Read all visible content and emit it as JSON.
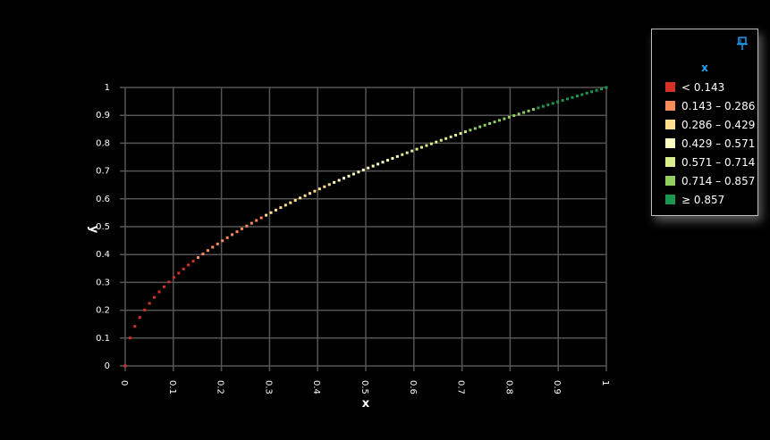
{
  "chart_data": {
    "type": "scatter",
    "xlabel": "x",
    "ylabel": "y",
    "xlim": [
      0,
      1
    ],
    "ylim": [
      0,
      1
    ],
    "x_ticks": [
      "0",
      "0.1",
      "0.2",
      "0.3",
      "0.4",
      "0.5",
      "0.6",
      "0.7",
      "0.8",
      "0.9",
      "1"
    ],
    "y_ticks": [
      "0",
      "0.1",
      "0.2",
      "0.3",
      "0.4",
      "0.5",
      "0.6",
      "0.7",
      "0.8",
      "0.9",
      "1"
    ],
    "grid": true,
    "relationship": "y = sqrt(x)",
    "point_count": 100,
    "x_range": [
      0,
      1
    ],
    "color_by": "x",
    "legend": {
      "title": "x",
      "placement": "top-right",
      "items": [
        {
          "label": "< 0.143",
          "color": "#d73027"
        },
        {
          "label": "0.143 – 0.286",
          "color": "#fc8d59"
        },
        {
          "label": "0.286 – 0.429",
          "color": "#fee08b"
        },
        {
          "label": "0.429 – 0.571",
          "color": "#ffffbf"
        },
        {
          "label": "0.571 – 0.714",
          "color": "#d9ef8b"
        },
        {
          "label": "0.714 – 0.857",
          "color": "#91cf60"
        },
        {
          "label": "≥ 0.857",
          "color": "#1a9850"
        }
      ]
    }
  },
  "icons": {
    "pin": "pin-icon"
  },
  "colors": {
    "background": "#000000",
    "grid": "#555555",
    "legend_title": "#1ea7ff"
  }
}
